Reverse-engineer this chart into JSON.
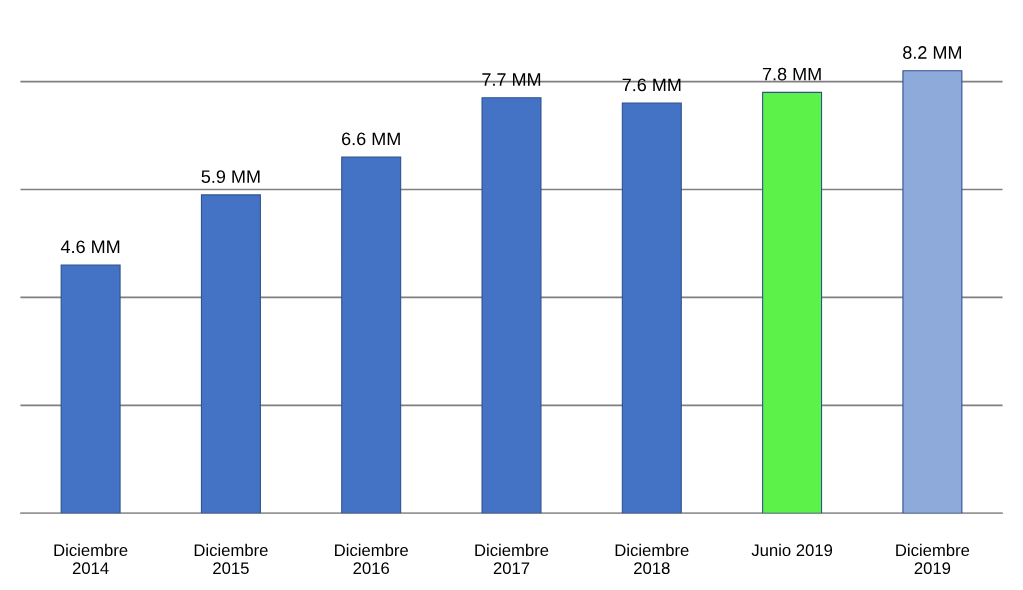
{
  "chart_data": {
    "type": "bar",
    "categories": [
      "Diciembre\n2014",
      "Diciembre\n2015",
      "Diciembre\n2016",
      "Diciembre\n2017",
      "Diciembre\n2018",
      "Junio 2019",
      "Diciembre\n2019"
    ],
    "values": [
      4.6,
      5.9,
      6.6,
      7.7,
      7.6,
      7.8,
      8.2
    ],
    "colors": [
      "#4472c4",
      "#4472c4",
      "#4472c4",
      "#4472c4",
      "#4472c4",
      "#5cf24a",
      "#8eaadb"
    ],
    "value_labels": [
      "4.6 MM",
      "5.9 MM",
      "6.6 MM",
      "7.7 MM",
      "7.6 MM",
      "7.8 MM",
      "8.2 MM"
    ],
    "grid": "y",
    "tick_labels": "x"
  }
}
